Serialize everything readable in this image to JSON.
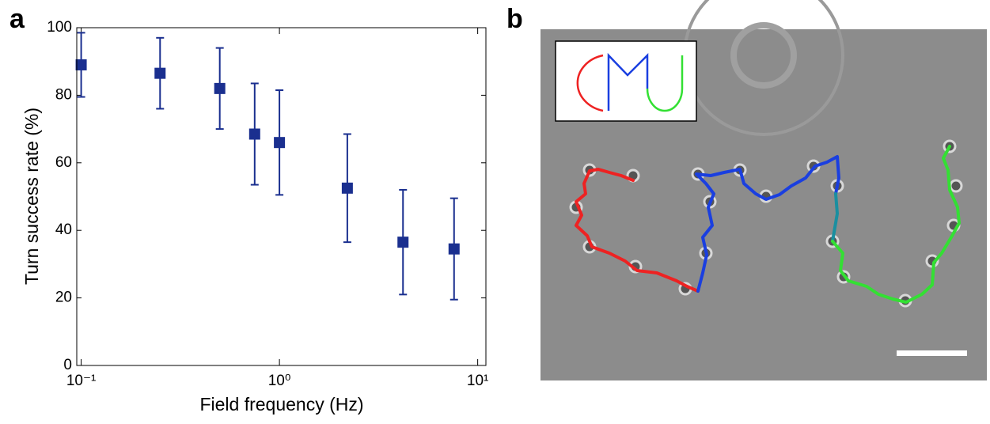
{
  "chart_data": {
    "type": "scatter",
    "panel_label": "a",
    "xlabel": "Field frequency (Hz)",
    "ylabel": "Turn success rate (%)",
    "x": [
      0.1,
      0.25,
      0.5,
      0.75,
      1,
      2.2,
      4.2,
      7.6
    ],
    "values": [
      89,
      86.5,
      82,
      68.5,
      66,
      52.5,
      36.5,
      34.5
    ],
    "errors": [
      9.5,
      10.5,
      12,
      15,
      15.5,
      16,
      15.5,
      15
    ],
    "color": "#1a2f8f",
    "xscale": "log",
    "xlim": [
      0.095,
      11
    ],
    "ylim": [
      0,
      100
    ],
    "xticks": [
      {
        "value": 0.1,
        "label": "10⁻¹"
      },
      {
        "value": 1,
        "label": "10⁰"
      },
      {
        "value": 10,
        "label": "10¹"
      }
    ],
    "yticks": [
      0,
      20,
      40,
      60,
      80,
      100
    ]
  },
  "image_panel": {
    "label": "b"
  }
}
